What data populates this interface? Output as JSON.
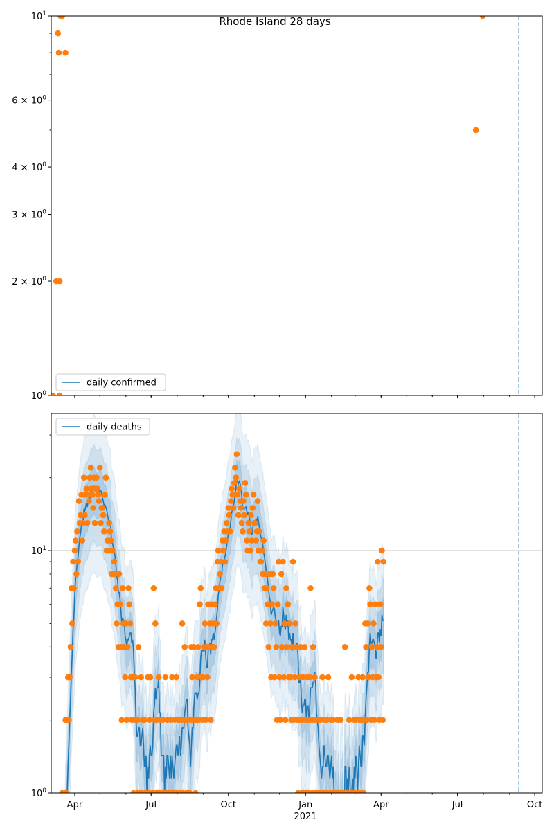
{
  "chart_data": [
    {
      "type": "scatter",
      "title": "Rhode Island 28 days",
      "legend": {
        "label": "daily confirmed",
        "placement": "lower-left"
      },
      "yscale": "log",
      "ylim": [
        1,
        10
      ],
      "ytick_labels": [
        {
          "value": 10,
          "base": "10",
          "exp": "1",
          "mult": ""
        },
        {
          "value": 6,
          "base": "10",
          "exp": "0",
          "mult": "6 × "
        },
        {
          "value": 4,
          "base": "10",
          "exp": "0",
          "mult": "4 × "
        },
        {
          "value": 3,
          "base": "10",
          "exp": "0",
          "mult": "3 × "
        },
        {
          "value": 2,
          "base": "10",
          "exp": "0",
          "mult": "2 × "
        },
        {
          "value": 1,
          "base": "10",
          "exp": "0",
          "mult": ""
        }
      ],
      "line_value": 1,
      "points": [
        [
          "2020-03-06",
          1
        ],
        [
          "2020-03-10",
          2
        ],
        [
          "2020-03-12",
          9
        ],
        [
          "2020-03-13",
          8
        ],
        [
          "2020-03-14",
          2
        ],
        [
          "2020-03-14",
          1
        ],
        [
          "2020-03-15",
          10
        ],
        [
          "2020-03-17",
          10
        ],
        [
          "2020-03-21",
          8
        ],
        [
          "2021-07-23",
          5
        ],
        [
          "2021-07-31",
          10
        ]
      ],
      "vline_date": "2021-09-12"
    },
    {
      "type": "line",
      "legend": {
        "label": "daily deaths",
        "placement": "upper-left"
      },
      "yscale": "log",
      "ylim": [
        1,
        36.8
      ],
      "ytick_labels": [
        {
          "value": 10,
          "base": "10",
          "exp": "1",
          "mult": ""
        },
        {
          "value": 1,
          "base": "10",
          "exp": "0",
          "mult": ""
        }
      ],
      "grid_y": [
        10
      ],
      "start_date": "2020-03-16",
      "daily_deaths": [
        0,
        1,
        0,
        0,
        1,
        2,
        1,
        2,
        3,
        2,
        3,
        4,
        7,
        5,
        9,
        7,
        10,
        11,
        8,
        12,
        9,
        16,
        13,
        14,
        17,
        11,
        13,
        20,
        14,
        17,
        18,
        13,
        17,
        16,
        20,
        22,
        18,
        17,
        15,
        20,
        13,
        18,
        20,
        18,
        17,
        16,
        22,
        13,
        15,
        15,
        14,
        12,
        17,
        20,
        10,
        11,
        10,
        13,
        12,
        11,
        8,
        10,
        8,
        9,
        8,
        7,
        5,
        6,
        4,
        8,
        6,
        4,
        2,
        7,
        5,
        4,
        3,
        5,
        2,
        4,
        7,
        6,
        5,
        3,
        2,
        3,
        1,
        2,
        3,
        0,
        1,
        2,
        4,
        1,
        0,
        3,
        1,
        2,
        0,
        2,
        1,
        1,
        0,
        3,
        1,
        2,
        3,
        0,
        1,
        1,
        7,
        2,
        5,
        1,
        2,
        1,
        3,
        1,
        2,
        0,
        1,
        2,
        1,
        0,
        3,
        1,
        2,
        1,
        1,
        0,
        2,
        1,
        3,
        1,
        0,
        2,
        1,
        3,
        1,
        2,
        2,
        1,
        0,
        2,
        5,
        1,
        2,
        4,
        2,
        1,
        2,
        1,
        0,
        1,
        2,
        4,
        3,
        2,
        4,
        2,
        1,
        2,
        3,
        4,
        2,
        6,
        7,
        3,
        2,
        3,
        4,
        5,
        2,
        4,
        3,
        6,
        4,
        5,
        2,
        6,
        4,
        5,
        4,
        6,
        7,
        5,
        9,
        10,
        7,
        8,
        9,
        7,
        11,
        10,
        12,
        9,
        11,
        13,
        12,
        15,
        14,
        12,
        16,
        18,
        17,
        15,
        19,
        22,
        20,
        25,
        17,
        14,
        18,
        16,
        15,
        13,
        12,
        16,
        14,
        19,
        17,
        11,
        10,
        13,
        12,
        10,
        14,
        11,
        15,
        17,
        13,
        13,
        11,
        12,
        16,
        10,
        12,
        9,
        9,
        10,
        8,
        11,
        7,
        8,
        5,
        7,
        6,
        4,
        8,
        5,
        3,
        6,
        8,
        7,
        3,
        5,
        4,
        2,
        6,
        9,
        3,
        2,
        8,
        4,
        9,
        3,
        5,
        2,
        7,
        4,
        6,
        3,
        5,
        3,
        2,
        4,
        9,
        2,
        3,
        5,
        4,
        2,
        1,
        3,
        2,
        4,
        1,
        2,
        3,
        1,
        4,
        2,
        1,
        3,
        2,
        1,
        3,
        7,
        2,
        1,
        4,
        2,
        3,
        1,
        2,
        1,
        0,
        2,
        1,
        2,
        0,
        3,
        1,
        2,
        1,
        0,
        2,
        1,
        3,
        0,
        1,
        2,
        1,
        0,
        2,
        1,
        0,
        1,
        0,
        2,
        1,
        0,
        1,
        2,
        0,
        1,
        0,
        1,
        4,
        1,
        0,
        1,
        0,
        2,
        0,
        1,
        3,
        1,
        0,
        2,
        1,
        2,
        0,
        1,
        3,
        2,
        1,
        0,
        2,
        3,
        1,
        2,
        5,
        4,
        2,
        5,
        3,
        7,
        6,
        2,
        4,
        3,
        5,
        2,
        6,
        3,
        4,
        9,
        3,
        2,
        6,
        4,
        10,
        2,
        9
      ],
      "vline_date": "2021-09-12"
    }
  ],
  "x_axis": {
    "ticks": [
      {
        "date": "2020-04-01",
        "label": "Apr"
      },
      {
        "date": "2020-07-01",
        "label": "Jul"
      },
      {
        "date": "2020-10-01",
        "label": "Oct"
      },
      {
        "date": "2021-01-01",
        "label": "Jan"
      },
      {
        "date": "2021-04-01",
        "label": "Apr"
      },
      {
        "date": "2021-07-01",
        "label": "Jul"
      },
      {
        "date": "2021-10-01",
        "label": "Oct"
      }
    ],
    "year_label": "2021",
    "xlim": [
      "2020-03-04",
      "2021-10-10"
    ]
  },
  "colors": {
    "line": "#1f77b4",
    "points": "#ff7f0e",
    "band": "#1f77b4",
    "grid": "#b0b0b0"
  }
}
